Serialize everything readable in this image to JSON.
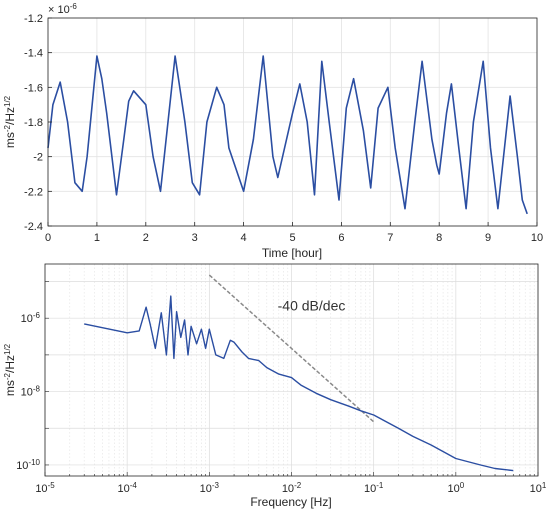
{
  "chart_data": [
    {
      "type": "line",
      "xlabel": "Time [hour]",
      "ylabel": "ms^-2/Hz^1/2",
      "ylabel_base": "ms",
      "ylabel_exp1": "-2",
      "ylabel_mid": "/Hz",
      "ylabel_exp2": "1/2",
      "exponent_base": "× 10",
      "exponent_power": "-6",
      "xlim": [
        0,
        10
      ],
      "ylim": [
        -2.4,
        -1.2
      ],
      "xticks": [
        0,
        1,
        2,
        3,
        4,
        5,
        6,
        7,
        8,
        9,
        10
      ],
      "xtick_labels": [
        "0",
        "1",
        "2",
        "3",
        "4",
        "5",
        "6",
        "7",
        "8",
        "9",
        "10"
      ],
      "yticks": [
        -2.4,
        -2.2,
        -2.0,
        -1.8,
        -1.6,
        -1.4,
        -1.2
      ],
      "ytick_labels": [
        "-2.4",
        "-2.2",
        "-2",
        "-1.8",
        "-1.6",
        "-1.4",
        "-1.2"
      ],
      "grid": true,
      "series_color": "#2b4ea2",
      "series": [
        {
          "x": [
            0.0,
            0.1,
            0.25,
            0.4,
            0.55,
            0.7,
            0.8,
            1.0,
            1.1,
            1.2,
            1.4,
            1.55,
            1.65,
            1.75,
            2.0,
            2.15,
            2.3,
            2.6,
            2.8,
            2.95,
            3.1,
            3.25,
            3.45,
            3.6,
            3.7,
            4.0,
            4.2,
            4.4,
            4.6,
            4.7,
            5.0,
            5.15,
            5.3,
            5.45,
            5.6,
            5.75,
            5.95,
            6.1,
            6.25,
            6.45,
            6.6,
            6.75,
            6.95,
            7.1,
            7.3,
            7.5,
            7.65,
            7.85,
            7.95,
            8.0,
            8.15,
            8.25,
            8.4,
            8.55,
            8.7,
            8.9,
            9.05,
            9.2,
            9.45,
            9.6,
            9.7,
            9.8
          ],
          "y": [
            -1.95,
            -1.7,
            -1.57,
            -1.8,
            -2.15,
            -2.2,
            -2.0,
            -1.42,
            -1.55,
            -1.75,
            -2.22,
            -1.9,
            -1.68,
            -1.62,
            -1.7,
            -2.0,
            -2.2,
            -1.42,
            -1.8,
            -2.15,
            -2.22,
            -1.8,
            -1.6,
            -1.7,
            -1.95,
            -2.2,
            -1.9,
            -1.42,
            -2.0,
            -2.12,
            -1.75,
            -1.58,
            -1.8,
            -2.22,
            -1.45,
            -1.8,
            -2.25,
            -1.72,
            -1.55,
            -1.85,
            -2.18,
            -1.72,
            -1.6,
            -1.95,
            -2.3,
            -1.8,
            -1.45,
            -1.9,
            -2.05,
            -2.1,
            -1.75,
            -1.58,
            -1.95,
            -2.3,
            -1.8,
            -1.45,
            -1.95,
            -2.3,
            -1.65,
            -2.0,
            -2.25,
            -2.33
          ]
        }
      ]
    },
    {
      "type": "line",
      "scale": "log-log",
      "xlabel": "Frequency [Hz]",
      "ylabel": "ms^-2/Hz^1/2",
      "ylabel_base": "ms",
      "ylabel_exp1": "-2",
      "ylabel_mid": "/Hz",
      "ylabel_exp2": "1/2",
      "xlim": [
        1e-05,
        10
      ],
      "ylim": [
        5e-11,
        3e-05
      ],
      "grid": true,
      "xtick_labels": [
        {
          "base": "10",
          "exp": "-5"
        },
        {
          "base": "10",
          "exp": "-4"
        },
        {
          "base": "10",
          "exp": "-3"
        },
        {
          "base": "10",
          "exp": "-2"
        },
        {
          "base": "10",
          "exp": "-1"
        },
        {
          "base": "10",
          "exp": "0"
        },
        {
          "base": "10",
          "exp": "1"
        }
      ],
      "ytick_labels": [
        {
          "base": "10",
          "exp": "-10"
        },
        {
          "base": "10",
          "exp": "-8"
        },
        {
          "base": "10",
          "exp": "-6"
        }
      ],
      "series_color": "#2b4ea2",
      "series": [
        {
          "x": [
            3e-05,
            0.0001,
            0.00014,
            0.00017,
            0.00019,
            0.00022,
            0.00026,
            0.0003,
            0.00034,
            0.00037,
            0.0004,
            0.00045,
            0.0005,
            0.00055,
            0.0006,
            0.0007,
            0.0008,
            0.0009,
            0.001,
            0.0012,
            0.0015,
            0.0018,
            0.002,
            0.0025,
            0.003,
            0.004,
            0.005,
            0.007,
            0.01,
            0.013,
            0.02,
            0.03,
            0.05,
            0.07,
            0.1,
            0.2,
            0.3,
            0.5,
            1,
            2,
            3,
            5
          ],
          "y": [
            7e-07,
            4e-07,
            4.5e-07,
            2e-06,
            7e-07,
            1.5e-07,
            1.4e-06,
            1e-07,
            4e-06,
            8e-08,
            1.5e-06,
            3e-07,
            9e-07,
            1e-07,
            6e-07,
            2e-07,
            5e-07,
            1.5e-07,
            5e-07,
            1e-07,
            8e-08,
            2.5e-07,
            2.2e-07,
            1.2e-07,
            8e-08,
            7e-08,
            4.5e-08,
            3e-08,
            2.4e-08,
            1.5e-08,
            9e-09,
            6e-09,
            4e-09,
            3e-09,
            2.3e-09,
            1e-09,
            6e-10,
            3.5e-10,
            1.5e-10,
            1e-10,
            8e-11,
            7e-11
          ]
        },
        {
          "x": [
            0.001,
            0.1
          ],
          "y": [
            1.5e-05,
            1.5e-09
          ]
        }
      ],
      "reference_color": "#8a8a8a",
      "annotation": "-40 dB/dec",
      "annotation_pos": {
        "x": 0.01,
        "y": 1.6e-06
      }
    }
  ]
}
